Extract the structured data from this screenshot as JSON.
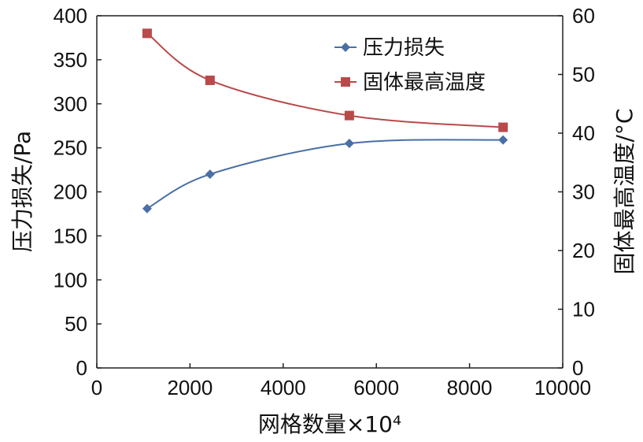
{
  "chart_data": {
    "type": "line",
    "title": "",
    "xlabel": "网格数量×10⁴",
    "ylabel_left": "压力损失/Pa",
    "ylabel_right": "固体最高温度/°C",
    "xlim": [
      0,
      10000
    ],
    "ylim_left": [
      0,
      400
    ],
    "ylim_right": [
      0,
      60
    ],
    "x_ticks": [
      "0",
      "2000",
      "4000",
      "6000",
      "8000",
      "10000"
    ],
    "y_left_ticks": [
      "0",
      "50",
      "100",
      "150",
      "200",
      "250",
      "300",
      "350",
      "400"
    ],
    "y_right_ticks": [
      "0",
      "10",
      "20",
      "30",
      "40",
      "50",
      "60"
    ],
    "grid": false,
    "legend_position": "top-right",
    "series": [
      {
        "name": "压力损失",
        "axis": "left",
        "marker": "diamond",
        "color": "#4a6fa5",
        "x": [
          1080,
          2430,
          5420,
          8720
        ],
        "y": [
          181,
          220,
          255,
          259
        ]
      },
      {
        "name": "固体最高温度",
        "axis": "right",
        "marker": "square",
        "color": "#b84a4a",
        "x": [
          1080,
          2430,
          5420,
          8720
        ],
        "y": [
          57,
          49,
          43,
          41
        ]
      }
    ]
  }
}
